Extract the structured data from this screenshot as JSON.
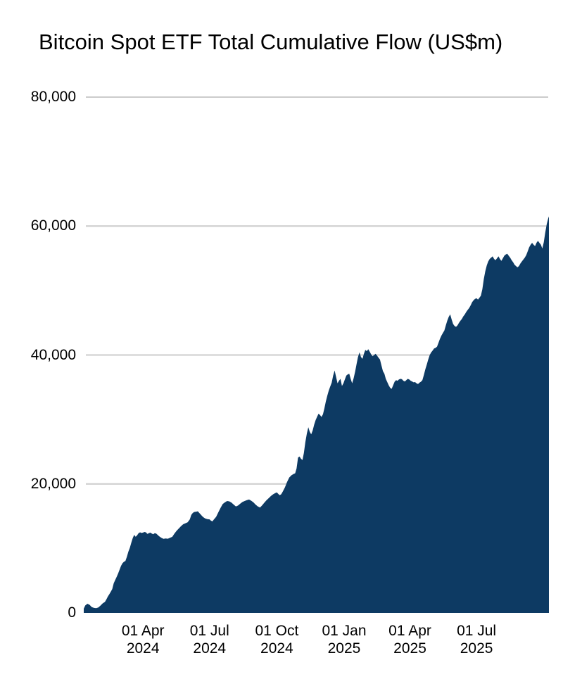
{
  "title": "Bitcoin Spot ETF Total Cumulative Flow (US$m)",
  "colors": {
    "area_fill": "#0d3a63",
    "gridline": "#cccccc",
    "text": "#000000",
    "background": "#ffffff"
  },
  "chart_data": {
    "type": "area",
    "title": "Bitcoin Spot ETF Total Cumulative Flow (US$m)",
    "xlabel": "",
    "ylabel": "",
    "ylim": [
      0,
      80000
    ],
    "grid": true,
    "legend": false,
    "y_ticks": [
      {
        "value": 0,
        "label": "0"
      },
      {
        "value": 20000,
        "label": "20,000"
      },
      {
        "value": 40000,
        "label": "40,000"
      },
      {
        "value": 60000,
        "label": "60,000"
      },
      {
        "value": 80000,
        "label": "80,000"
      }
    ],
    "x_ticks": [
      {
        "day": 81,
        "line1": "01 Apr",
        "line2": "2024"
      },
      {
        "day": 172,
        "line1": "01 Jul",
        "line2": "2024"
      },
      {
        "day": 264,
        "line1": "01 Oct",
        "line2": "2024"
      },
      {
        "day": 356,
        "line1": "01 Jan",
        "line2": "2025"
      },
      {
        "day": 446,
        "line1": "01 Apr",
        "line2": "2025"
      },
      {
        "day": 537,
        "line1": "01 Jul",
        "line2": "2025"
      }
    ],
    "x_unit": "days from series start (series starts mid-January 2024)",
    "series": [
      {
        "name": "Total cumulative flow (US$m)",
        "points": [
          [
            0,
            655
          ],
          [
            2,
            1150
          ],
          [
            5,
            1420
          ],
          [
            8,
            1250
          ],
          [
            11,
            900
          ],
          [
            14,
            780
          ],
          [
            17,
            745
          ],
          [
            20,
            850
          ],
          [
            23,
            1150
          ],
          [
            26,
            1480
          ],
          [
            29,
            1700
          ],
          [
            31,
            2100
          ],
          [
            33,
            2550
          ],
          [
            35,
            2900
          ],
          [
            37,
            3300
          ],
          [
            39,
            3700
          ],
          [
            41,
            4600
          ],
          [
            43,
            5100
          ],
          [
            45,
            5600
          ],
          [
            47,
            6100
          ],
          [
            49,
            6700
          ],
          [
            51,
            7300
          ],
          [
            53,
            7700
          ],
          [
            55,
            7950
          ],
          [
            57,
            8050
          ],
          [
            59,
            8700
          ],
          [
            61,
            9500
          ],
          [
            63,
            10100
          ],
          [
            65,
            10900
          ],
          [
            67,
            11600
          ],
          [
            69,
            12100
          ],
          [
            71,
            11800
          ],
          [
            73,
            12050
          ],
          [
            75,
            12350
          ],
          [
            77,
            12500
          ],
          [
            79,
            12400
          ],
          [
            81,
            12450
          ],
          [
            83,
            12550
          ],
          [
            85,
            12500
          ],
          [
            87,
            12250
          ],
          [
            89,
            12350
          ],
          [
            91,
            12450
          ],
          [
            93,
            12300
          ],
          [
            95,
            12200
          ],
          [
            97,
            12350
          ],
          [
            99,
            12300
          ],
          [
            101,
            12100
          ],
          [
            103,
            11900
          ],
          [
            106,
            11650
          ],
          [
            109,
            11480
          ],
          [
            112,
            11550
          ],
          [
            115,
            11500
          ],
          [
            118,
            11650
          ],
          [
            121,
            11800
          ],
          [
            124,
            12300
          ],
          [
            127,
            12750
          ],
          [
            130,
            13100
          ],
          [
            133,
            13450
          ],
          [
            136,
            13750
          ],
          [
            139,
            13900
          ],
          [
            142,
            14050
          ],
          [
            145,
            14500
          ],
          [
            147,
            15200
          ],
          [
            149,
            15500
          ],
          [
            151,
            15650
          ],
          [
            154,
            15700
          ],
          [
            156,
            15760
          ],
          [
            158,
            15500
          ],
          [
            160,
            15250
          ],
          [
            162,
            15000
          ],
          [
            164,
            14800
          ],
          [
            166,
            14650
          ],
          [
            169,
            14550
          ],
          [
            172,
            14500
          ],
          [
            174,
            14300
          ],
          [
            176,
            14200
          ],
          [
            178,
            14500
          ],
          [
            181,
            14900
          ],
          [
            184,
            15600
          ],
          [
            187,
            16300
          ],
          [
            190,
            16900
          ],
          [
            193,
            17150
          ],
          [
            196,
            17350
          ],
          [
            199,
            17300
          ],
          [
            202,
            17100
          ],
          [
            205,
            16800
          ],
          [
            208,
            16500
          ],
          [
            211,
            16650
          ],
          [
            214,
            16950
          ],
          [
            217,
            17200
          ],
          [
            220,
            17350
          ],
          [
            223,
            17500
          ],
          [
            226,
            17580
          ],
          [
            229,
            17400
          ],
          [
            232,
            17150
          ],
          [
            235,
            16800
          ],
          [
            238,
            16500
          ],
          [
            241,
            16350
          ],
          [
            244,
            16700
          ],
          [
            247,
            17100
          ],
          [
            250,
            17500
          ],
          [
            253,
            17800
          ],
          [
            256,
            18150
          ],
          [
            259,
            18400
          ],
          [
            262,
            18600
          ],
          [
            264,
            18680
          ],
          [
            266,
            18450
          ],
          [
            268,
            18250
          ],
          [
            270,
            18400
          ],
          [
            272,
            18800
          ],
          [
            275,
            19450
          ],
          [
            278,
            20300
          ],
          [
            281,
            21000
          ],
          [
            284,
            21350
          ],
          [
            287,
            21550
          ],
          [
            289,
            21650
          ],
          [
            291,
            22400
          ],
          [
            293,
            24100
          ],
          [
            295,
            24250
          ],
          [
            297,
            23900
          ],
          [
            299,
            23700
          ],
          [
            301,
            24800
          ],
          [
            303,
            26500
          ],
          [
            305,
            27800
          ],
          [
            307,
            28800
          ],
          [
            309,
            28100
          ],
          [
            311,
            27700
          ],
          [
            313,
            28300
          ],
          [
            315,
            29200
          ],
          [
            317,
            29900
          ],
          [
            319,
            30400
          ],
          [
            321,
            30900
          ],
          [
            323,
            30700
          ],
          [
            325,
            30400
          ],
          [
            327,
            30800
          ],
          [
            329,
            31700
          ],
          [
            331,
            32800
          ],
          [
            333,
            33700
          ],
          [
            335,
            34500
          ],
          [
            337,
            35100
          ],
          [
            339,
            35700
          ],
          [
            341,
            36800
          ],
          [
            343,
            37600
          ],
          [
            345,
            36600
          ],
          [
            347,
            35600
          ],
          [
            349,
            36000
          ],
          [
            351,
            36300
          ],
          [
            353,
            35200
          ],
          [
            355,
            35600
          ],
          [
            357,
            36200
          ],
          [
            359,
            36800
          ],
          [
            361,
            37000
          ],
          [
            363,
            37100
          ],
          [
            365,
            36300
          ],
          [
            367,
            35600
          ],
          [
            369,
            36400
          ],
          [
            371,
            37400
          ],
          [
            373,
            38600
          ],
          [
            375,
            39700
          ],
          [
            377,
            40400
          ],
          [
            379,
            39700
          ],
          [
            381,
            39400
          ],
          [
            383,
            40200
          ],
          [
            385,
            40800
          ],
          [
            387,
            40600
          ],
          [
            389,
            40900
          ],
          [
            391,
            40500
          ],
          [
            393,
            40100
          ],
          [
            395,
            39800
          ],
          [
            397,
            40000
          ],
          [
            399,
            40200
          ],
          [
            401,
            39900
          ],
          [
            403,
            39600
          ],
          [
            405,
            39300
          ],
          [
            407,
            38400
          ],
          [
            409,
            37500
          ],
          [
            411,
            37100
          ],
          [
            413,
            36300
          ],
          [
            415,
            35800
          ],
          [
            417,
            35300
          ],
          [
            419,
            34900
          ],
          [
            421,
            34750
          ],
          [
            423,
            35300
          ],
          [
            425,
            35850
          ],
          [
            427,
            36100
          ],
          [
            429,
            36000
          ],
          [
            431,
            36200
          ],
          [
            433,
            36300
          ],
          [
            435,
            36250
          ],
          [
            437,
            36000
          ],
          [
            439,
            35900
          ],
          [
            441,
            36100
          ],
          [
            443,
            36300
          ],
          [
            445,
            36200
          ],
          [
            447,
            36000
          ],
          [
            449,
            35900
          ],
          [
            451,
            35750
          ],
          [
            453,
            35800
          ],
          [
            455,
            35600
          ],
          [
            457,
            35500
          ],
          [
            459,
            35700
          ],
          [
            461,
            35850
          ],
          [
            463,
            36100
          ],
          [
            465,
            36900
          ],
          [
            467,
            37800
          ],
          [
            469,
            38500
          ],
          [
            471,
            39300
          ],
          [
            473,
            40000
          ],
          [
            475,
            40400
          ],
          [
            477,
            40700
          ],
          [
            479,
            41000
          ],
          [
            481,
            41100
          ],
          [
            483,
            41300
          ],
          [
            485,
            41900
          ],
          [
            487,
            42500
          ],
          [
            489,
            43000
          ],
          [
            491,
            43400
          ],
          [
            493,
            43800
          ],
          [
            495,
            44600
          ],
          [
            497,
            45300
          ],
          [
            499,
            45900
          ],
          [
            501,
            46300
          ],
          [
            503,
            45500
          ],
          [
            505,
            44800
          ],
          [
            507,
            44500
          ],
          [
            509,
            44370
          ],
          [
            511,
            44600
          ],
          [
            513,
            45000
          ],
          [
            515,
            45300
          ],
          [
            517,
            45600
          ],
          [
            519,
            46000
          ],
          [
            521,
            46300
          ],
          [
            523,
            46700
          ],
          [
            525,
            47000
          ],
          [
            527,
            47300
          ],
          [
            529,
            47700
          ],
          [
            531,
            48200
          ],
          [
            533,
            48500
          ],
          [
            535,
            48700
          ],
          [
            537,
            48800
          ],
          [
            539,
            48600
          ],
          [
            541,
            48900
          ],
          [
            543,
            49200
          ],
          [
            545,
            50200
          ],
          [
            547,
            51800
          ],
          [
            549,
            53000
          ],
          [
            551,
            53900
          ],
          [
            553,
            54500
          ],
          [
            555,
            54900
          ],
          [
            557,
            55100
          ],
          [
            559,
            55300
          ],
          [
            561,
            54900
          ],
          [
            563,
            54700
          ],
          [
            565,
            55000
          ],
          [
            567,
            55300
          ],
          [
            569,
            54900
          ],
          [
            571,
            54600
          ],
          [
            573,
            55000
          ],
          [
            575,
            55400
          ],
          [
            577,
            55600
          ],
          [
            579,
            55700
          ],
          [
            581,
            55400
          ],
          [
            583,
            55100
          ],
          [
            585,
            54700
          ],
          [
            587,
            54400
          ],
          [
            589,
            54000
          ],
          [
            591,
            53800
          ],
          [
            593,
            53600
          ],
          [
            595,
            53800
          ],
          [
            597,
            54200
          ],
          [
            599,
            54500
          ],
          [
            601,
            54800
          ],
          [
            603,
            55100
          ],
          [
            605,
            55500
          ],
          [
            607,
            56100
          ],
          [
            609,
            56700
          ],
          [
            611,
            57100
          ],
          [
            613,
            57400
          ],
          [
            615,
            57100
          ],
          [
            617,
            56900
          ],
          [
            619,
            57400
          ],
          [
            621,
            57700
          ],
          [
            623,
            57400
          ],
          [
            625,
            57100
          ],
          [
            627,
            56500
          ],
          [
            629,
            57500
          ],
          [
            631,
            59000
          ],
          [
            633,
            60300
          ],
          [
            635,
            61200
          ],
          [
            636,
            61500
          ]
        ]
      }
    ]
  }
}
